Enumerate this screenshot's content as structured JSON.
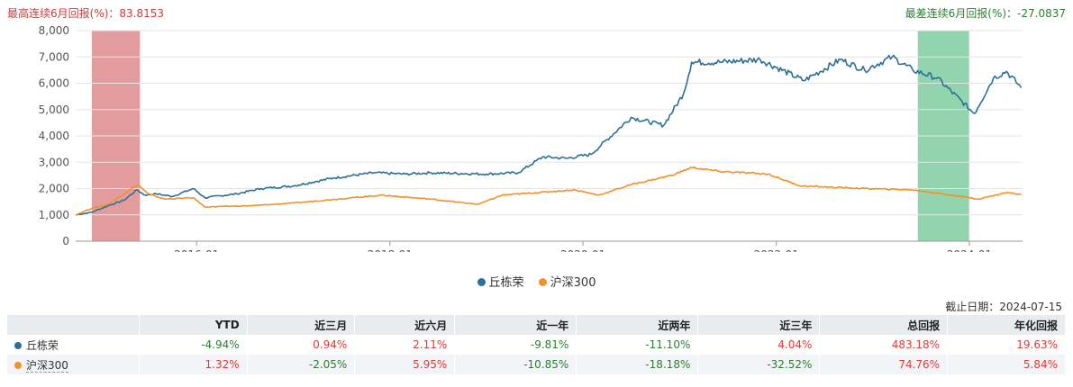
{
  "header": {
    "best_label": "最高连续6月回报(%)：83.8153",
    "worst_label": "最差连续6月回报(%)：-27.0837"
  },
  "colors": {
    "manager": "#2b7096",
    "index": "#f0922b",
    "best_band": "#de8b8d",
    "worst_band": "#7fcca0"
  },
  "chart_data": {
    "type": "line",
    "x_axis": {
      "type": "date",
      "tick_labels": [
        "2016-01",
        "2018-01",
        "2020-01",
        "2022-01",
        "2024-01"
      ]
    },
    "y_axis": {
      "ylim": [
        0,
        8000
      ],
      "tick_labels": [
        "0",
        "1,000",
        "2,000",
        "3,000",
        "4,000",
        "5,000",
        "6,000",
        "7,000",
        "8,000"
      ]
    },
    "grid": "horizontal",
    "highlight_bands": [
      {
        "name": "best_6m",
        "start": "2014-12-01",
        "end": "2015-06-01"
      },
      {
        "name": "worst_6m",
        "start": "2023-06-20",
        "end": "2023-12-31"
      }
    ],
    "series": [
      {
        "name": "丘栋荣",
        "points": [
          [
            "2014-10-01",
            1000
          ],
          [
            "2014-12-01",
            1100
          ],
          [
            "2015-02-01",
            1350
          ],
          [
            "2015-04-01",
            1550
          ],
          [
            "2015-05-20",
            1950
          ],
          [
            "2015-06-20",
            1750
          ],
          [
            "2015-08-01",
            1800
          ],
          [
            "2015-10-01",
            1700
          ],
          [
            "2015-12-20",
            2000
          ],
          [
            "2016-02-01",
            1650
          ],
          [
            "2016-06-01",
            1800
          ],
          [
            "2016-09-01",
            2000
          ],
          [
            "2017-01-01",
            2100
          ],
          [
            "2017-06-01",
            2400
          ],
          [
            "2017-11-01",
            2600
          ],
          [
            "2018-03-01",
            2550
          ],
          [
            "2018-06-01",
            2600
          ],
          [
            "2019-01-01",
            2550
          ],
          [
            "2019-05-01",
            2600
          ],
          [
            "2019-08-01",
            3200
          ],
          [
            "2019-11-01",
            3150
          ],
          [
            "2020-02-01",
            3300
          ],
          [
            "2020-07-01",
            4700
          ],
          [
            "2020-11-01",
            4400
          ],
          [
            "2021-01-15",
            5600
          ],
          [
            "2021-02-15",
            6800
          ],
          [
            "2021-06-01",
            6800
          ],
          [
            "2021-11-01",
            6900
          ],
          [
            "2022-04-15",
            6100
          ],
          [
            "2022-09-01",
            6900
          ],
          [
            "2022-12-01",
            6500
          ],
          [
            "2023-03-15",
            7000
          ],
          [
            "2023-06-01",
            6500
          ],
          [
            "2023-09-01",
            6200
          ],
          [
            "2024-01-20",
            4850
          ],
          [
            "2024-04-01",
            6200
          ],
          [
            "2024-05-20",
            6450
          ],
          [
            "2024-07-15",
            5830
          ]
        ]
      },
      {
        "name": "沪深300",
        "points": [
          [
            "2014-10-01",
            1000
          ],
          [
            "2014-12-01",
            1250
          ],
          [
            "2015-02-01",
            1400
          ],
          [
            "2015-05-25",
            2150
          ],
          [
            "2015-07-01",
            1800
          ],
          [
            "2015-09-01",
            1600
          ],
          [
            "2015-12-20",
            1650
          ],
          [
            "2016-02-01",
            1300
          ],
          [
            "2016-08-01",
            1350
          ],
          [
            "2017-01-01",
            1450
          ],
          [
            "2017-12-01",
            1750
          ],
          [
            "2018-06-01",
            1600
          ],
          [
            "2018-12-01",
            1400
          ],
          [
            "2019-03-01",
            1750
          ],
          [
            "2019-12-01",
            1950
          ],
          [
            "2020-03-01",
            1750
          ],
          [
            "2020-07-01",
            2150
          ],
          [
            "2020-12-01",
            2500
          ],
          [
            "2021-02-15",
            2800
          ],
          [
            "2021-06-01",
            2650
          ],
          [
            "2021-12-01",
            2550
          ],
          [
            "2022-04-01",
            2100
          ],
          [
            "2022-12-01",
            2000
          ],
          [
            "2023-06-01",
            1950
          ],
          [
            "2023-12-01",
            1700
          ],
          [
            "2024-02-05",
            1600
          ],
          [
            "2024-05-20",
            1850
          ],
          [
            "2024-07-15",
            1780
          ]
        ]
      }
    ]
  },
  "legend": [
    {
      "label": "丘栋荣",
      "color": "#2b7096"
    },
    {
      "label": "沪深300",
      "color": "#f0922b"
    }
  ],
  "as_of": "截止日期：2024-07-15",
  "table": {
    "columns": [
      "YTD",
      "近三月",
      "近六月",
      "近一年",
      "近两年",
      "近三年",
      "总回报",
      "年化回报"
    ],
    "rows": [
      {
        "name": "丘栋荣",
        "values": [
          "-4.94%",
          "0.94%",
          "2.11%",
          "-9.81%",
          "-11.10%",
          "4.04%",
          "483.18%",
          "19.63%"
        ]
      },
      {
        "name": "沪深300",
        "values": [
          "1.32%",
          "-2.05%",
          "5.95%",
          "-10.85%",
          "-18.18%",
          "-32.52%",
          "74.76%",
          "5.84%"
        ]
      }
    ]
  }
}
